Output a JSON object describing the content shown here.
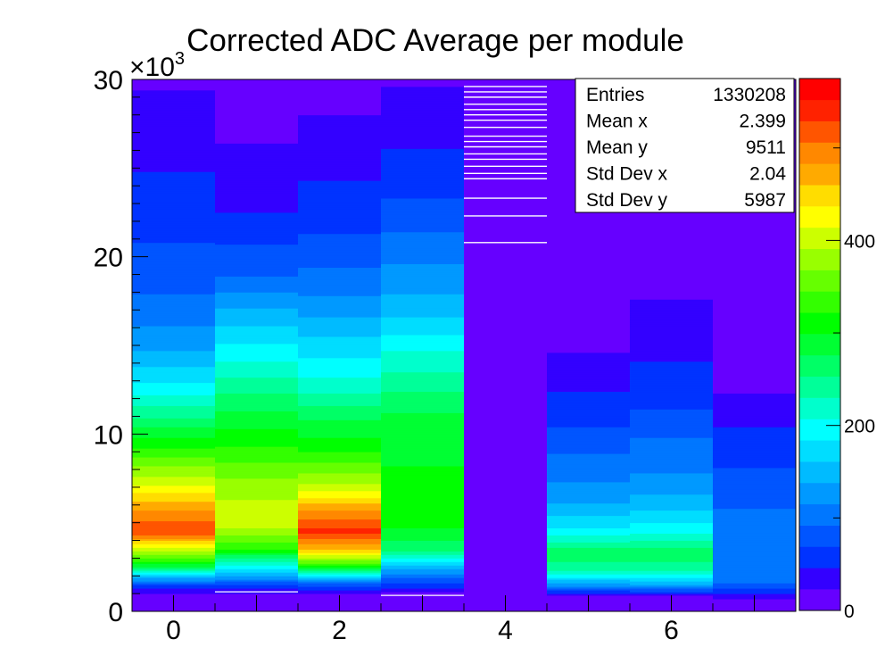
{
  "chart_data": {
    "type": "heatmap",
    "title": "Corrected ADC Average per module",
    "xlabel": "",
    "ylabel": "",
    "xlim": [
      -0.5,
      7.5
    ],
    "ylim": [
      0,
      30000
    ],
    "y_exponent_label": "×10",
    "y_exponent_power": "3",
    "x_ticks": [
      "0",
      "2",
      "4",
      "6"
    ],
    "y_ticks": [
      "0",
      "10",
      "20",
      "30"
    ],
    "colorbar": {
      "range": [
        0,
        575
      ],
      "ticks": [
        "0",
        "200",
        "400"
      ]
    },
    "colorscale": [
      "#6600ff",
      "#3300ff",
      "#0033ff",
      "#0055ff",
      "#0077ff",
      "#0099ff",
      "#00bbff",
      "#00ddff",
      "#00ffff",
      "#00ffcc",
      "#00ff99",
      "#00ff66",
      "#00ff33",
      "#00ff00",
      "#33ff00",
      "#66ff00",
      "#99ff00",
      "#ccff00",
      "#ffff00",
      "#ffdd00",
      "#ffaa00",
      "#ff8800",
      "#ff5500",
      "#ff2200",
      "#ff0000"
    ],
    "modules": [
      {
        "module": 0,
        "ymin": 700,
        "ymax": 30000,
        "profile": [
          [
            700,
            0
          ],
          [
            1500,
            60
          ],
          [
            2500,
            280
          ],
          [
            3500,
            400
          ],
          [
            4500,
            530
          ],
          [
            6000,
            470
          ],
          [
            7000,
            420
          ],
          [
            9000,
            330
          ],
          [
            11000,
            250
          ],
          [
            13000,
            180
          ],
          [
            15000,
            130
          ],
          [
            18000,
            90
          ],
          [
            22000,
            60
          ],
          [
            26000,
            40
          ],
          [
            30000,
            20
          ]
        ]
      },
      {
        "module": 1,
        "ymin": 700,
        "ymax": 29000,
        "profile": [
          [
            700,
            0
          ],
          [
            1200,
            40
          ],
          [
            2500,
            190
          ],
          [
            3500,
            320
          ],
          [
            5000,
            410
          ],
          [
            7000,
            380
          ],
          [
            9000,
            330
          ],
          [
            12000,
            260
          ],
          [
            14000,
            210
          ],
          [
            17000,
            140
          ],
          [
            19000,
            90
          ],
          [
            23000,
            40
          ],
          [
            29000,
            10
          ]
        ]
      },
      {
        "module": 2,
        "ymin": 800,
        "ymax": 28500,
        "profile": [
          [
            800,
            0
          ],
          [
            1500,
            80
          ],
          [
            2500,
            310
          ],
          [
            3500,
            460
          ],
          [
            4500,
            540
          ],
          [
            5800,
            480
          ],
          [
            7000,
            400
          ],
          [
            9000,
            320
          ],
          [
            11000,
            270
          ],
          [
            13000,
            210
          ],
          [
            15000,
            170
          ],
          [
            18000,
            110
          ],
          [
            22000,
            60
          ],
          [
            28500,
            20
          ]
        ]
      },
      {
        "module": 3,
        "ymin": 800,
        "ymax": 30000,
        "profile": [
          [
            800,
            0
          ],
          [
            1500,
            60
          ],
          [
            2500,
            150
          ],
          [
            3500,
            260
          ],
          [
            5000,
            310
          ],
          [
            8000,
            300
          ],
          [
            11000,
            280
          ],
          [
            13000,
            240
          ],
          [
            15000,
            200
          ],
          [
            17000,
            150
          ],
          [
            20000,
            110
          ],
          [
            24000,
            60
          ],
          [
            27000,
            40
          ],
          [
            30000,
            20
          ]
        ]
      },
      {
        "module": 4,
        "ymin": 700,
        "ymax": 20500,
        "profile": [
          [
            700,
            5
          ],
          [
            20500,
            5
          ]
        ]
      },
      {
        "module": 5,
        "ymin": 900,
        "ymax": 15900,
        "profile": [
          [
            900,
            20
          ],
          [
            1500,
            130
          ],
          [
            2500,
            250
          ],
          [
            3500,
            260
          ],
          [
            4500,
            190
          ],
          [
            6000,
            140
          ],
          [
            7500,
            110
          ],
          [
            9000,
            90
          ],
          [
            11000,
            60
          ],
          [
            13000,
            40
          ],
          [
            15900,
            10
          ]
        ]
      },
      {
        "module": 6,
        "ymin": 900,
        "ymax": 19500,
        "profile": [
          [
            900,
            20
          ],
          [
            1500,
            140
          ],
          [
            2500,
            250
          ],
          [
            3500,
            260
          ],
          [
            4500,
            200
          ],
          [
            6000,
            150
          ],
          [
            8000,
            110
          ],
          [
            10000,
            90
          ],
          [
            12000,
            60
          ],
          [
            15000,
            40
          ],
          [
            19500,
            10
          ]
        ]
      },
      {
        "module": 7,
        "ymin": 700,
        "ymax": 12500,
        "profile": [
          [
            700,
            20
          ],
          [
            1500,
            90
          ],
          [
            3000,
            110
          ],
          [
            5000,
            100
          ],
          [
            7000,
            80
          ],
          [
            9000,
            60
          ],
          [
            11000,
            40
          ],
          [
            12500,
            20
          ]
        ]
      }
    ],
    "stats": {
      "rows": [
        {
          "label": "Entries",
          "value": "1330208"
        },
        {
          "label": "Mean x",
          "value": "2.399"
        },
        {
          "label": "Mean y",
          "value": "9511"
        },
        {
          "label": "Std Dev x",
          "value": "2.04"
        },
        {
          "label": "Std Dev y",
          "value": "5987"
        }
      ]
    }
  }
}
